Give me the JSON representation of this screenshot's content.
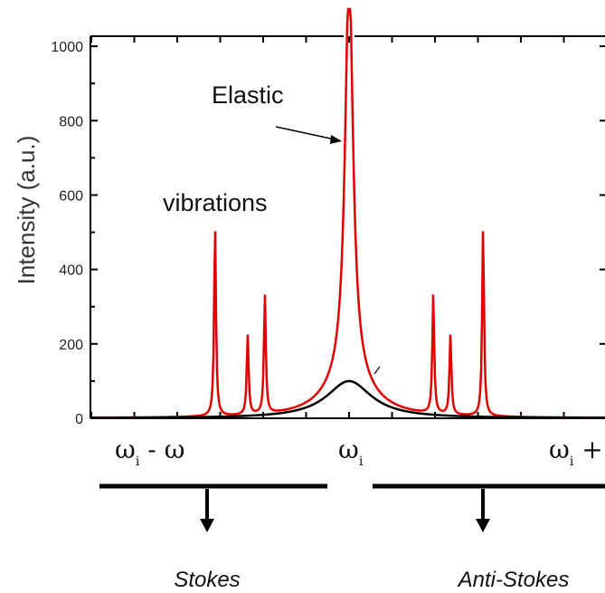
{
  "chart_data": {
    "type": "line",
    "ylabel": "Intensity (a.u.)",
    "ylim": [
      0,
      1100
    ],
    "yticks": [
      0,
      200,
      400,
      600,
      800,
      1000
    ],
    "x_categories": [
      {
        "main": "ω",
        "sub": "i",
        "rest": " - ω"
      },
      {
        "main": "ω",
        "sub": "i",
        "rest": ""
      },
      {
        "main": "ω",
        "sub": "i",
        "rest": " + ω"
      }
    ],
    "xlim": [
      -1.5,
      1.5
    ],
    "series": [
      {
        "color": "#e00000",
        "peaks": [
          {
            "x": 0.0,
            "height": 1100
          },
          {
            "x": -0.78,
            "height": 510
          },
          {
            "x": -0.59,
            "height": 215
          },
          {
            "x": -0.49,
            "height": 320
          },
          {
            "x": 0.49,
            "height": 320
          },
          {
            "x": 0.59,
            "height": 215
          },
          {
            "x": 0.78,
            "height": 510
          }
        ]
      },
      {
        "color": "#000000",
        "peaks": [
          {
            "x": 0.0,
            "height": 100
          }
        ]
      }
    ],
    "annotations": [
      "Elastic",
      "vibrations"
    ],
    "regions": [
      "Stokes",
      "Anti-Stokes"
    ]
  }
}
